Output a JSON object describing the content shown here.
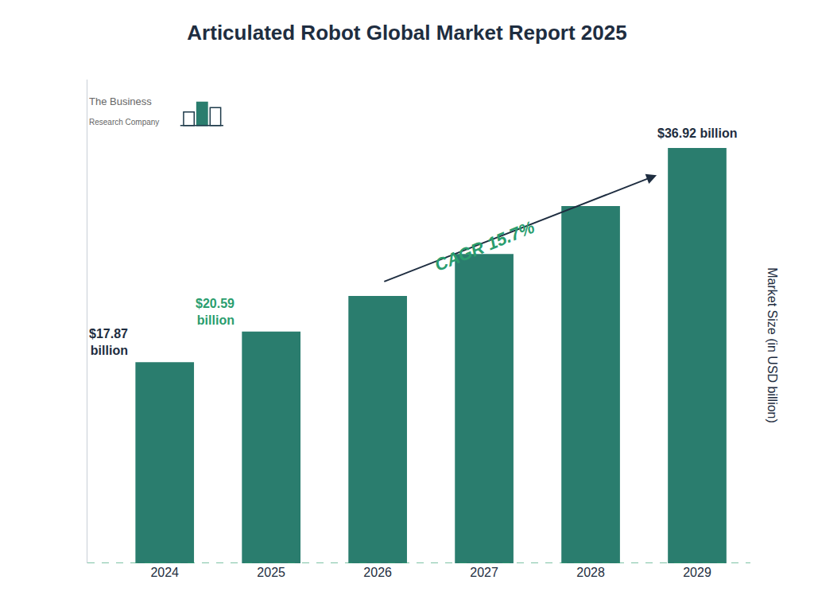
{
  "chart_data": {
    "type": "bar",
    "title": "Articulated Robot Global Market Report 2025",
    "categories": [
      "2024",
      "2025",
      "2026",
      "2027",
      "2028",
      "2029"
    ],
    "values": [
      17.87,
      20.59,
      23.76,
      27.49,
      31.75,
      36.92
    ],
    "color": "#2a7d6e",
    "ylabel": "Market Size (in USD billion)",
    "ylim": [
      0,
      43
    ],
    "tick_labels": "x",
    "grid": false,
    "annotations": [
      {
        "text": "$17.87\nbillion",
        "category": "2024",
        "color": "#1e2d40"
      },
      {
        "text": "$20.59\nbillion",
        "category": "2025",
        "color": "#2a9d6e"
      },
      {
        "text": "$36.92 billion",
        "category": "2029",
        "color": "#1e2d40"
      },
      {
        "text": "CAGR 15.7%",
        "color": "#2a9d6e"
      },
      {
        "text": "The Business",
        "color": "#666666"
      },
      {
        "text": "Research Company",
        "color": "#666666"
      }
    ]
  }
}
